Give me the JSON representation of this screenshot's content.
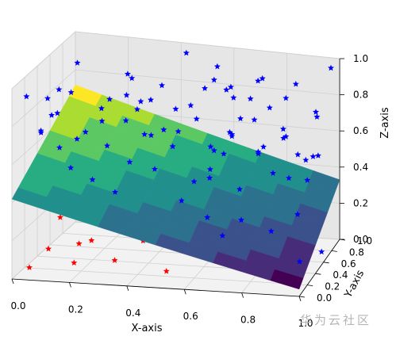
{
  "chart_data": {
    "type": "scatter",
    "title": "",
    "xlabel": "X-axis",
    "ylabel": "Y-axis",
    "zlabel": "Z-axis",
    "xlim": [
      0,
      1
    ],
    "ylim": [
      0,
      1
    ],
    "zlim": [
      0,
      1
    ],
    "xticks": [
      "0.0",
      "0.2",
      "0.4",
      "0.6",
      "0.8",
      "1.0"
    ],
    "yticks": [
      "0.0",
      "0.2",
      "0.4",
      "0.6",
      "0.8",
      "1.0"
    ],
    "zticks": [
      "0.0",
      "0.2",
      "0.4",
      "0.6",
      "0.8",
      "1.0"
    ],
    "grid": true,
    "surface": {
      "type": "plane",
      "colormap": "viridis",
      "corners": [
        {
          "x": 0.0,
          "y": 1.0,
          "z": 0.72
        },
        {
          "x": 0.0,
          "y": 0.0,
          "z": 0.42
        },
        {
          "x": 1.0,
          "y": 0.0,
          "z": 0.04
        },
        {
          "x": 1.0,
          "y": 1.0,
          "z": 0.33
        }
      ]
    },
    "series": [
      {
        "marker": "star",
        "color": "#0000ff",
        "points": [
          [
            0.55,
            0.8,
            0.52
          ],
          [
            0.62,
            0.85,
            0.58
          ],
          [
            0.71,
            0.9,
            0.47
          ],
          [
            0.8,
            0.92,
            0.61
          ],
          [
            0.88,
            0.95,
            0.44
          ],
          [
            0.93,
            0.9,
            0.7
          ],
          [
            0.97,
            0.98,
            0.95
          ],
          [
            0.6,
            0.7,
            0.31
          ],
          [
            0.68,
            0.76,
            0.38
          ],
          [
            0.75,
            0.78,
            0.55
          ],
          [
            0.82,
            0.82,
            0.28
          ],
          [
            0.9,
            0.86,
            0.36
          ],
          [
            0.52,
            0.66,
            0.22
          ],
          [
            0.58,
            0.62,
            0.41
          ],
          [
            0.65,
            0.64,
            0.66
          ],
          [
            0.73,
            0.7,
            0.72
          ],
          [
            0.84,
            0.74,
            0.63
          ],
          [
            0.95,
            0.8,
            0.52
          ],
          [
            0.46,
            0.58,
            0.18
          ],
          [
            0.52,
            0.54,
            0.34
          ],
          [
            0.6,
            0.52,
            0.49
          ],
          [
            0.7,
            0.58,
            0.76
          ],
          [
            0.8,
            0.62,
            0.82
          ],
          [
            0.9,
            0.64,
            0.57
          ],
          [
            0.42,
            0.48,
            0.12
          ],
          [
            0.48,
            0.44,
            0.27
          ],
          [
            0.56,
            0.42,
            0.45
          ],
          [
            0.66,
            0.46,
            0.6
          ],
          [
            0.75,
            0.5,
            0.9
          ],
          [
            0.86,
            0.56,
            0.68
          ],
          [
            0.36,
            0.4,
            0.33
          ],
          [
            0.43,
            0.36,
            0.52
          ],
          [
            0.5,
            0.33,
            0.66
          ],
          [
            0.58,
            0.36,
            0.81
          ],
          [
            0.68,
            0.4,
            0.97
          ],
          [
            0.3,
            0.3,
            0.4
          ],
          [
            0.36,
            0.26,
            0.58
          ],
          [
            0.44,
            0.24,
            0.74
          ],
          [
            0.52,
            0.28,
            0.88
          ],
          [
            0.62,
            0.3,
            1.0
          ],
          [
            0.24,
            0.2,
            0.49
          ],
          [
            0.3,
            0.16,
            0.69
          ],
          [
            0.37,
            0.14,
            0.84
          ],
          [
            0.45,
            0.18,
            0.95
          ],
          [
            0.54,
            0.22,
            0.78
          ],
          [
            0.18,
            0.12,
            0.57
          ],
          [
            0.24,
            0.08,
            0.78
          ],
          [
            0.3,
            0.06,
            0.92
          ],
          [
            0.38,
            0.1,
            0.99
          ],
          [
            0.15,
            0.04,
            0.88
          ],
          [
            0.12,
            0.02,
            0.96
          ],
          [
            0.2,
            0.03,
            1.0
          ],
          [
            0.7,
            0.2,
            0.24
          ],
          [
            0.78,
            0.28,
            0.16
          ],
          [
            0.86,
            0.34,
            0.08
          ],
          [
            0.94,
            0.4,
            0.02
          ],
          [
            0.97,
            0.22,
            0.12
          ],
          [
            0.88,
            0.15,
            0.3
          ],
          [
            0.66,
            0.12,
            0.36
          ],
          [
            0.58,
            0.06,
            0.46
          ],
          [
            0.78,
            0.08,
            0.54
          ],
          [
            0.9,
            0.06,
            0.65
          ],
          [
            0.98,
            0.1,
            0.42
          ],
          [
            0.84,
            0.45,
            0.18
          ],
          [
            0.92,
            0.55,
            0.1
          ],
          [
            0.99,
            0.62,
            0.05
          ],
          [
            0.74,
            0.36,
            0.28
          ],
          [
            0.64,
            0.72,
            0.88
          ],
          [
            0.56,
            0.88,
            0.93
          ],
          [
            0.48,
            0.78,
            0.74
          ],
          [
            0.4,
            0.68,
            0.63
          ],
          [
            0.34,
            0.56,
            0.81
          ],
          [
            0.44,
            0.9,
            0.98
          ],
          [
            0.28,
            0.62,
            0.93
          ],
          [
            0.22,
            0.46,
            0.72
          ],
          [
            0.16,
            0.32,
            0.66
          ],
          [
            0.26,
            0.4,
            0.86
          ],
          [
            0.32,
            0.5,
            0.95
          ],
          [
            0.1,
            0.18,
            0.82
          ],
          [
            0.08,
            0.1,
            0.75
          ],
          [
            0.7,
            0.95,
            0.85
          ],
          [
            0.8,
            0.98,
            0.76
          ],
          [
            0.88,
            0.72,
            0.93
          ],
          [
            0.96,
            0.68,
            0.8
          ],
          [
            0.78,
            0.58,
            0.99
          ],
          [
            0.68,
            0.55,
            0.88
          ],
          [
            0.6,
            0.6,
            0.95
          ],
          [
            0.92,
            0.3,
            0.55
          ],
          [
            0.82,
            0.24,
            0.7
          ],
          [
            0.74,
            0.16,
            0.8
          ],
          [
            0.66,
            0.26,
            0.68
          ],
          [
            0.98,
            0.48,
            0.62
          ],
          [
            0.86,
            0.86,
            0.15
          ],
          [
            0.76,
            0.94,
            0.22
          ],
          [
            0.5,
            0.96,
            0.4
          ],
          [
            0.42,
            0.82,
            0.3
          ],
          [
            0.38,
            0.74,
            0.45
          ],
          [
            0.3,
            0.82,
            0.55
          ],
          [
            0.22,
            0.7,
            0.4
          ],
          [
            0.18,
            0.58,
            0.5
          ],
          [
            0.26,
            0.88,
            0.66
          ],
          [
            0.34,
            0.94,
            0.78
          ],
          [
            0.14,
            0.66,
            0.3
          ],
          [
            0.12,
            0.52,
            0.44
          ],
          [
            0.08,
            0.4,
            0.58
          ],
          [
            0.04,
            0.28,
            0.7
          ],
          [
            0.06,
            0.48,
            0.86
          ],
          [
            0.1,
            0.6,
            0.97
          ],
          [
            0.02,
            0.14,
            0.92
          ]
        ]
      },
      {
        "marker": "star",
        "color": "#ff0000",
        "points": [
          [
            0.05,
            0.05,
            0.05
          ],
          [
            0.2,
            0.08,
            0.08
          ],
          [
            0.35,
            0.04,
            0.12
          ],
          [
            0.52,
            0.1,
            0.06
          ],
          [
            0.08,
            0.22,
            0.1
          ],
          [
            0.22,
            0.28,
            0.14
          ],
          [
            0.15,
            0.4,
            0.08
          ],
          [
            0.06,
            0.5,
            0.18
          ],
          [
            0.12,
            0.55,
            0.28
          ],
          [
            0.28,
            0.45,
            0.2
          ],
          [
            0.4,
            0.3,
            0.15
          ],
          [
            0.18,
            0.7,
            0.22
          ],
          [
            0.1,
            0.8,
            0.3
          ],
          [
            0.3,
            0.6,
            0.1
          ]
        ]
      }
    ]
  },
  "watermark": "华为云社区"
}
